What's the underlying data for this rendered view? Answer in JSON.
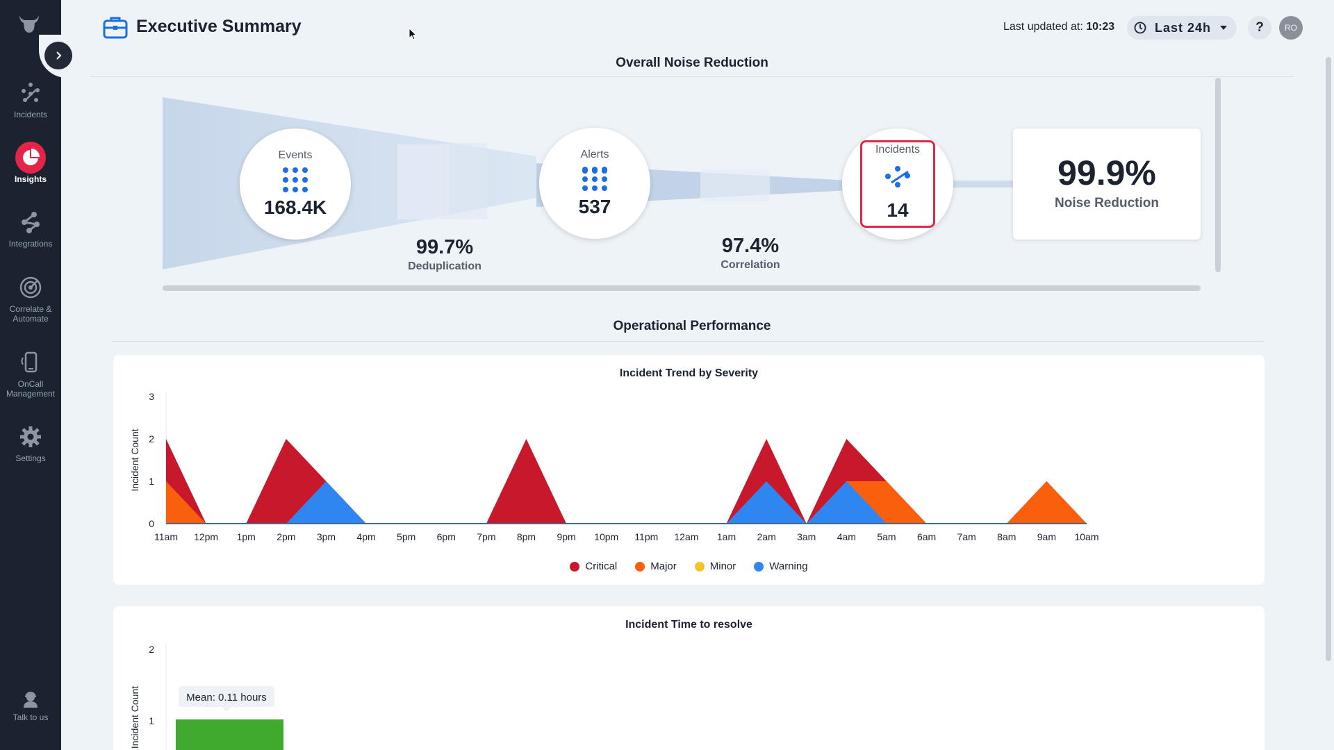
{
  "header": {
    "title": "Executive Summary",
    "last_updated_label": "Last updated at:",
    "last_updated_value": "10:23",
    "time_range": "Last 24h",
    "help": "?",
    "avatar_initials": "RO"
  },
  "sidebar": {
    "items": [
      {
        "label": "Incidents",
        "icon": "incidents-icon"
      },
      {
        "label": "Insights",
        "icon": "insights-icon"
      },
      {
        "label": "Integrations",
        "icon": "integrations-icon"
      },
      {
        "label": "Correlate & Automate",
        "icon": "correlate-icon"
      },
      {
        "label": "OnCall Management",
        "icon": "oncall-icon"
      },
      {
        "label": "Settings",
        "icon": "gear-icon"
      }
    ],
    "bottom": {
      "label": "Talk to us",
      "icon": "support-icon"
    }
  },
  "noise": {
    "section_title": "Overall Noise Reduction",
    "events_label": "Events",
    "events_value": "168.4K",
    "alerts_label": "Alerts",
    "alerts_value": "537",
    "incidents_label": "Incidents",
    "incidents_value": "14",
    "dedup_pct": "99.7%",
    "dedup_label": "Deduplication",
    "corr_pct": "97.4%",
    "corr_label": "Correlation",
    "reduction_pct": "99.9%",
    "reduction_label": "Noise Reduction"
  },
  "operational": {
    "section_title": "Operational Performance"
  },
  "colors": {
    "critical": "#c8192c",
    "major": "#fa5f0c",
    "minor": "#f7c32a",
    "warning": "#2f86f0",
    "green": "#3faa2e",
    "accent_red": "#e3254a",
    "blue_icon": "#1b6fe0"
  },
  "chart_data": [
    {
      "type": "area",
      "title": "Incident Trend by Severity",
      "xlabel": "",
      "ylabel": "Incident Count",
      "ylim": [
        0,
        3
      ],
      "yticks": [
        "0",
        "1",
        "2",
        "3"
      ],
      "categories": [
        "11am",
        "12pm",
        "1pm",
        "2pm",
        "3pm",
        "4pm",
        "5pm",
        "6pm",
        "7pm",
        "8pm",
        "9pm",
        "10pm",
        "11pm",
        "12am",
        "1am",
        "2am",
        "3am",
        "4am",
        "5am",
        "6am",
        "7am",
        "8am",
        "9am",
        "10am"
      ],
      "series": [
        {
          "name": "Critical",
          "values": [
            2,
            0,
            0,
            2,
            1,
            0,
            0,
            0,
            0,
            2,
            0,
            0,
            0,
            0,
            0,
            2,
            0,
            2,
            1,
            0,
            0,
            0,
            1,
            0
          ]
        },
        {
          "name": "Major",
          "values": [
            1,
            0,
            0,
            0,
            0,
            0,
            0,
            0,
            0,
            0,
            0,
            0,
            0,
            0,
            0,
            0,
            0,
            1,
            1,
            0,
            0,
            0,
            1,
            0
          ]
        },
        {
          "name": "Minor",
          "values": [
            0,
            0,
            0,
            0,
            0,
            0,
            0,
            0,
            0,
            0,
            0,
            0,
            0,
            0,
            0,
            0,
            0,
            0,
            0,
            0,
            0,
            0,
            0,
            0
          ]
        },
        {
          "name": "Warning",
          "values": [
            0,
            0,
            0,
            0,
            1,
            0,
            0,
            0,
            0,
            0,
            0,
            0,
            0,
            0,
            0,
            1,
            0,
            1,
            0,
            0,
            0,
            0,
            0,
            0
          ]
        }
      ],
      "legend": [
        "Critical",
        "Major",
        "Minor",
        "Warning"
      ],
      "legend_position": "bottom"
    },
    {
      "type": "bar",
      "title": "Incident Time to resolve",
      "ylabel": "Incident Count",
      "ylim": [
        0,
        2
      ],
      "yticks": [
        "1",
        "2"
      ],
      "values": [
        1
      ],
      "annotation": "Mean: 0.11 hours"
    }
  ]
}
